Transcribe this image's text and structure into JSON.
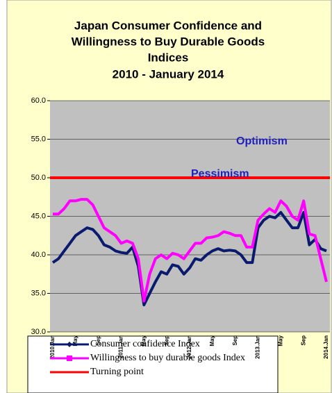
{
  "chart_data": {
    "type": "line",
    "title": [
      "Japan Consumer Confidence and",
      "Willingness to Buy Durable Goods",
      "Indices"
    ],
    "subtitle": "2010 -  January 2014",
    "categories": [
      "2010.Jan",
      null,
      null,
      null,
      "May",
      null,
      null,
      null,
      "Sep",
      null,
      null,
      null,
      "2011.Jan",
      null,
      null,
      null,
      "May",
      null,
      null,
      null,
      "Sep",
      null,
      null,
      null,
      "2012.Jan",
      null,
      null,
      null,
      "May",
      null,
      null,
      null,
      "Sep",
      null,
      null,
      null,
      "2013.Jan",
      null,
      null,
      null,
      "May",
      null,
      null,
      null,
      "Sep",
      null,
      null,
      null,
      "2014.Jan"
    ],
    "series": [
      {
        "name": "Consumer confidence Index",
        "color": "#0a1a6e",
        "values": [
          39,
          39.5,
          40.5,
          41.5,
          42.5,
          43,
          43.5,
          43.3,
          42.5,
          41.3,
          41,
          40.5,
          40.3,
          40.2,
          41,
          38.5,
          33.5,
          35,
          36.5,
          37.8,
          37.5,
          38.7,
          38.5,
          37.5,
          38.3,
          39.5,
          39.3,
          40,
          40.5,
          40.8,
          40.5,
          40.6,
          40.5,
          40,
          39,
          39,
          43.5,
          44.5,
          45,
          44.8,
          45.5,
          44.5,
          43.5,
          43.5,
          45.5,
          41.3,
          42,
          40.8,
          40.5
        ]
      },
      {
        "name": "Willingness to buy durable goods Index",
        "color": "#ff00ff",
        "values": [
          45.3,
          45.3,
          46,
          47,
          47,
          47.2,
          47.2,
          46.5,
          45,
          43.5,
          43,
          42.5,
          41.5,
          41.8,
          41.5,
          39.5,
          34,
          37.5,
          39.5,
          40,
          39.5,
          40.2,
          40,
          39.5,
          40.5,
          41.5,
          41.5,
          42.2,
          42.3,
          42.5,
          43,
          42.8,
          42.5,
          42.5,
          41,
          41,
          44.5,
          45.3,
          46,
          45.5,
          47,
          46.3,
          45,
          44.5,
          47,
          42.7,
          42.5,
          39.5,
          36.5
        ]
      }
    ],
    "reference_line": {
      "name": "Turning point",
      "value": 50,
      "color": "#ff0000"
    },
    "annotations": [
      "Optimism",
      "Pessimism"
    ],
    "ylim": [
      30,
      60
    ],
    "yticks": [
      {
        "value": 30,
        "label": "30.0"
      },
      {
        "value": 35,
        "label": "35.0"
      },
      {
        "value": 40,
        "label": "40.0"
      },
      {
        "value": 45,
        "label": "45.0"
      },
      {
        "value": 50,
        "label": "50.0"
      },
      {
        "value": 55,
        "label": "55.0"
      },
      {
        "value": 60,
        "label": "60.0"
      }
    ],
    "grid": true
  }
}
